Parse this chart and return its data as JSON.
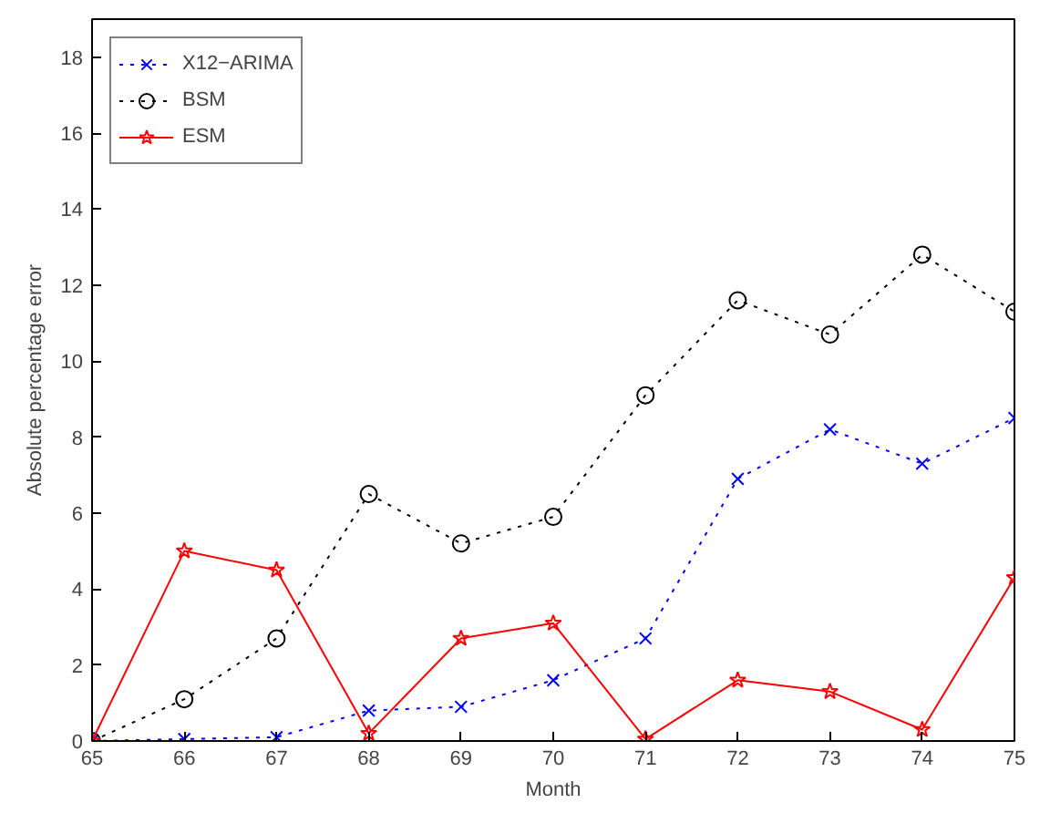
{
  "chart_data": {
    "type": "line",
    "xlabel": "Month",
    "ylabel": "Absolute percentage error",
    "x": [
      65,
      66,
      67,
      68,
      69,
      70,
      71,
      72,
      73,
      74,
      75
    ],
    "xlim": [
      65,
      75
    ],
    "xticks": [
      65,
      66,
      67,
      68,
      69,
      70,
      71,
      72,
      73,
      74,
      75
    ],
    "ylim": [
      0,
      19
    ],
    "yticks": [
      0,
      2,
      4,
      6,
      8,
      10,
      12,
      14,
      16,
      18
    ],
    "grid": false,
    "legend": "top left",
    "series": [
      {
        "name": "X12−ARIMA",
        "color": "#0000ff",
        "marker": "cross",
        "line_style": "dotted",
        "values": [
          0,
          0.05,
          0.1,
          0.8,
          0.9,
          1.6,
          2.7,
          6.9,
          8.2,
          7.3,
          8.5
        ]
      },
      {
        "name": "BSM",
        "color": "#000000",
        "marker": "circle",
        "line_style": "dotted",
        "values": [
          0,
          1.1,
          2.7,
          6.5,
          5.2,
          5.9,
          9.1,
          11.6,
          10.7,
          12.8,
          11.3
        ]
      },
      {
        "name": "ESM",
        "color": "#ff0000",
        "marker": "star",
        "line_style": "solid",
        "values": [
          0,
          5.0,
          4.5,
          0.2,
          2.7,
          3.1,
          0.05,
          1.6,
          1.3,
          0.3,
          4.3
        ]
      }
    ]
  }
}
